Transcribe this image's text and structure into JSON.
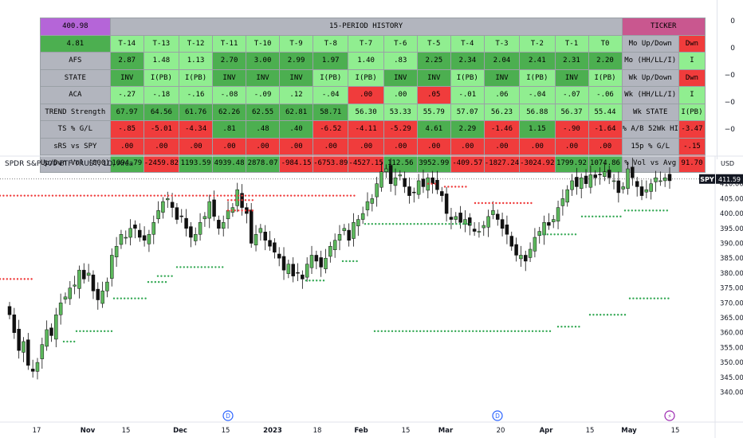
{
  "table": {
    "columns": [
      "4.81",
      "T-14",
      "T-13",
      "T-12",
      "T-11",
      "T-10",
      "T-9",
      "T-8",
      "T-7",
      "T-6",
      "T-5",
      "T-4",
      "T-3",
      "T-2",
      "T-1",
      "T0",
      "Mo Up/Down",
      "Dwn"
    ],
    "corner_value": "400.98",
    "history_title": "15-PERIOD HISTORY",
    "ticker_title": "TICKER",
    "rows": [
      {
        "label": "AFS",
        "values": [
          "2.87",
          "1.48",
          "1.13",
          "2.70",
          "3.00",
          "2.99",
          "1.97",
          "1.40",
          ".83",
          "2.25",
          "2.34",
          "2.04",
          "2.41",
          "2.31",
          "2.20"
        ],
        "right_label": "Mo (HH/LL/I)",
        "right_value": "I"
      },
      {
        "label": "STATE",
        "values": [
          "INV",
          "I(PB)",
          "I(PB)",
          "INV",
          "INV",
          "INV",
          "I(PB)",
          "I(PB)",
          "INV",
          "INV",
          "I(PB)",
          "INV",
          "I(PB)",
          "INV",
          "I(PB)"
        ],
        "right_label": "Wk Up/Down",
        "right_value": "Dwn"
      },
      {
        "label": "ACA",
        "values": [
          "-.27",
          "-.18",
          "-.16",
          "-.08",
          "-.09",
          ".12",
          "-.04",
          ".00",
          ".00",
          ".05",
          "-.01",
          ".06",
          "-.04",
          "-.07",
          "-.06"
        ],
        "right_label": "Wk (HH/LL/I)",
        "right_value": "I"
      },
      {
        "label": "TREND Strength",
        "values": [
          "67.97",
          "64.56",
          "61.76",
          "62.26",
          "62.55",
          "62.81",
          "58.71",
          "56.30",
          "53.33",
          "55.79",
          "57.07",
          "56.23",
          "56.88",
          "56.37",
          "55.44"
        ],
        "right_label": "Wk STATE",
        "right_value": "I(PB)"
      },
      {
        "label": "TS % G/L",
        "values": [
          "-.85",
          "-5.01",
          "-4.34",
          ".81",
          ".48",
          ".40",
          "-6.52",
          "-4.11",
          "-5.29",
          "4.61",
          "2.29",
          "-1.46",
          "1.15",
          "-.90",
          "-1.64"
        ],
        "right_label": "% A/B 52Wk HI",
        "right_value": "-3.47"
      },
      {
        "label": "sRS vs SPY",
        "values": [
          ".00",
          ".00",
          ".00",
          ".00",
          ".00",
          ".00",
          ".00",
          ".00",
          ".00",
          ".00",
          ".00",
          ".00",
          ".00",
          ".00",
          ".00"
        ],
        "right_label": "15p % G/L",
        "right_value": "-.15"
      },
      {
        "label": "Up/Dwn Vol (000)",
        "values": [
          "1694.79",
          "-2459.82",
          "1193.59",
          "4939.48",
          "2878.07",
          "-984.15",
          "-6753.89",
          "-4527.15",
          "112.56",
          "3952.99",
          "-409.57",
          "-1827.24",
          "-3024.92",
          "1799.92",
          "1074.86"
        ],
        "right_label": "% Vol vs Avg",
        "right_value": "91.70"
      }
    ]
  },
  "indicator_scale": [
    "0",
    "0",
    "−0",
    "−0",
    "−0"
  ],
  "chart": {
    "title": "SPDR S&P 500 ETF TRUST, 1D, Arca",
    "currency": "USD",
    "ticker_tag": "SPY",
    "price_tag": "411.59",
    "y_ticks": [
      "410.00",
      "405.00",
      "400.00",
      "395.00",
      "390.00",
      "385.00",
      "380.00",
      "375.00",
      "370.00",
      "365.00",
      "360.00",
      "355.00",
      "350.00",
      "345.00",
      "340.00"
    ],
    "x_ticks": [
      "17",
      "Nov",
      "15",
      "Dec",
      "15",
      "2023",
      "18",
      "Feb",
      "15",
      "Mar",
      "20",
      "Apr",
      "15",
      "May",
      "15"
    ],
    "event_markers": [
      "D",
      "D",
      "⚡"
    ]
  },
  "colors": {
    "up": "#5cb85c",
    "down": "#111111",
    "stop_red": "#ef3b3b",
    "stop_green": "#33a853",
    "purple": "#b565d8",
    "pink": "#c9578f",
    "grey_header": "#b2b5be",
    "table_grey": "#b2b5be",
    "green_dark": "#4caf50",
    "green_light": "#90ee90",
    "red": "#f03c3c"
  }
}
